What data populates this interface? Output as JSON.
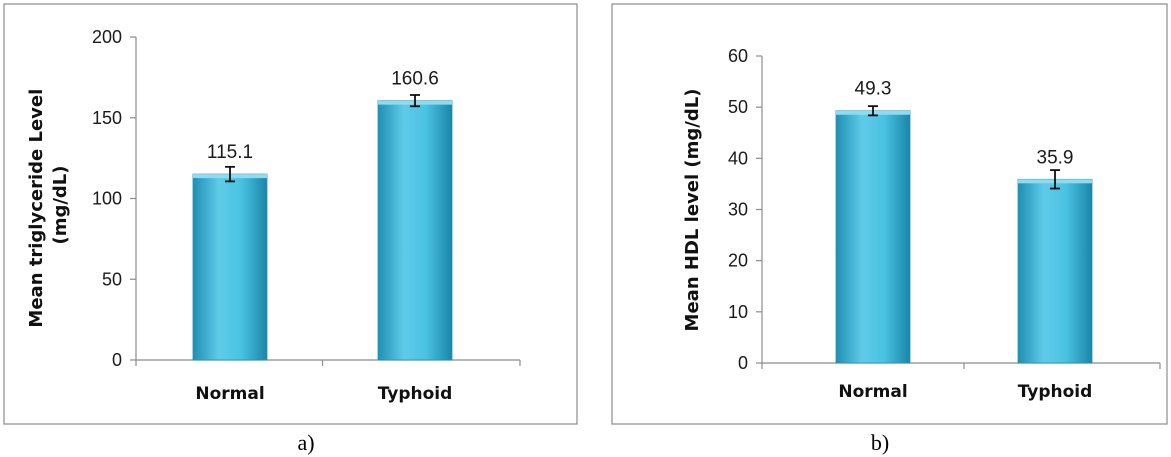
{
  "chart_data": [
    {
      "type": "bar",
      "categories": [
        "Normal",
        "Typhoid"
      ],
      "values": [
        115.1,
        160.6
      ],
      "errors": [
        4.5,
        3.5
      ],
      "data_labels": [
        "115.1",
        "160.6"
      ],
      "ylabel_lines": [
        "Mean triglyceride Level",
        "(mg/dL)"
      ],
      "ylim": [
        0,
        200
      ],
      "yticks": [
        "0",
        "50",
        "100",
        "150",
        "200"
      ],
      "caption": "a)",
      "bar_color": "#3fb6d8"
    },
    {
      "type": "bar",
      "categories": [
        "Normal",
        "Typhoid"
      ],
      "values": [
        49.3,
        35.9
      ],
      "errors": [
        0.9,
        1.8
      ],
      "data_labels": [
        "49.3",
        "35.9"
      ],
      "ylabel_lines": [
        "Mean HDL level (mg/dL)"
      ],
      "ylim": [
        0,
        60
      ],
      "yticks": [
        "0",
        "10",
        "20",
        "30",
        "40",
        "50",
        "60"
      ],
      "caption": "b)",
      "bar_color": "#3fb6d8"
    }
  ]
}
